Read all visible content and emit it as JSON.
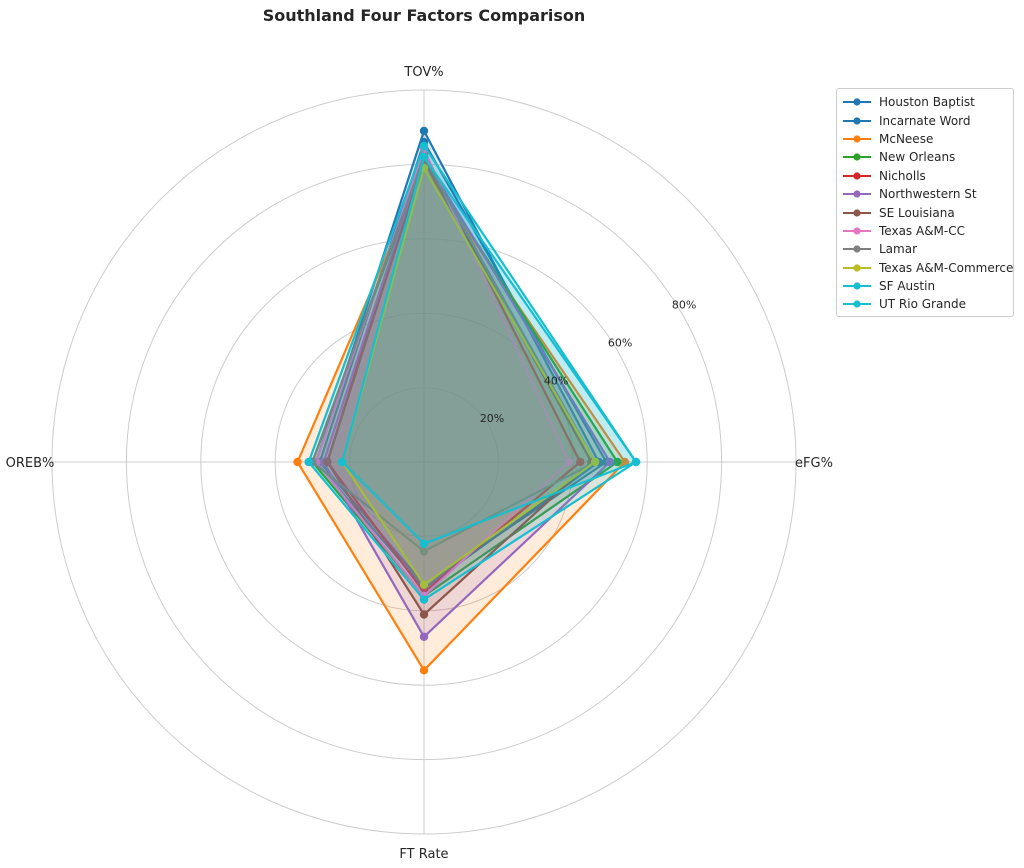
{
  "chart_data": {
    "type": "radar",
    "title": "Southland Four Factors Comparison",
    "axes": [
      "TOV%",
      "eFG%",
      "FT Rate",
      "OREB%"
    ],
    "rticks": [
      20,
      40,
      60,
      80
    ],
    "rtick_labels": [
      "20%",
      "40%",
      "60%",
      "80%"
    ],
    "rmax": 100,
    "grid": true,
    "legend_position": "upper right, outside",
    "series": [
      {
        "name": "Houston Baptist",
        "color": "#1f77b4",
        "values": [
          86,
          49,
          33,
          28
        ]
      },
      {
        "name": "Incarnate Word",
        "color": "#1f77b4",
        "values": [
          89,
          47,
          34,
          29
        ]
      },
      {
        "name": "McNeese",
        "color": "#ff7f0e",
        "values": [
          79,
          54,
          56,
          34
        ]
      },
      {
        "name": "New Orleans",
        "color": "#2ca02c",
        "values": [
          81,
          52,
          36,
          30
        ]
      },
      {
        "name": "Nicholls",
        "color": "#d62728",
        "values": [
          83,
          42,
          35,
          26
        ]
      },
      {
        "name": "Northwestern St",
        "color": "#9467bd",
        "values": [
          82,
          50,
          47,
          27
        ]
      },
      {
        "name": "SE Louisiana",
        "color": "#8c564b",
        "values": [
          81,
          45,
          41,
          26
        ]
      },
      {
        "name": "Texas A&M-CC",
        "color": "#e377c2",
        "values": [
          84,
          39,
          36,
          29
        ]
      },
      {
        "name": "Lamar",
        "color": "#7f7f7f",
        "values": [
          82,
          46,
          24,
          30
        ]
      },
      {
        "name": "Texas A&M-Commerce",
        "color": "#bcbd22",
        "values": [
          79,
          46,
          33,
          22
        ]
      },
      {
        "name": "SF Austin",
        "color": "#17becf",
        "values": [
          85,
          57,
          37,
          31
        ]
      },
      {
        "name": "UT Rio Grande",
        "color": "#17becf",
        "values": [
          82,
          57,
          22,
          22
        ]
      }
    ]
  }
}
